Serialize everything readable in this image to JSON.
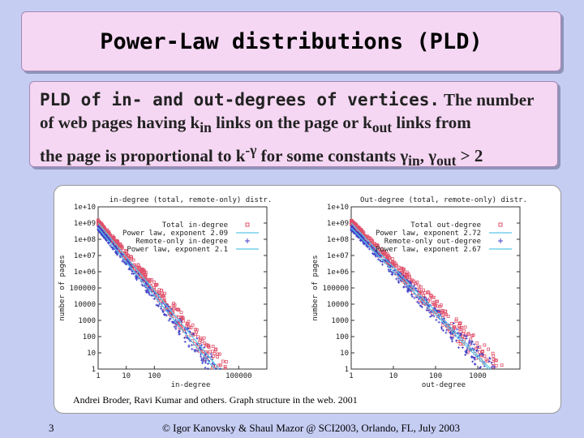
{
  "slide": {
    "title": "Power-Law distributions (PLD)",
    "desc": {
      "lead": "PLD of in- and out-degrees of vertices.",
      "t1": " The number",
      "t2": "of web pages having k",
      "sub_in": "in",
      "t3": " links on the page or k",
      "sub_out": "out",
      "t4": " links from",
      "t5": "the page is proportional to k",
      "sup": "-γ",
      "t6": " for some constants γ",
      "sub_in2": "in",
      "t7": ", γ",
      "sub_out2": "out",
      "t8": " > 2"
    },
    "caption": "Andrei Broder, Ravi Kumar and others. Graph structure in the web. 2001",
    "page_number": "3",
    "footer": "© Igor Kanovsky & Shaul Mazor @ SCI2003, Orlando, FL, July 2003"
  },
  "chart_data": [
    {
      "type": "scatter",
      "title": "in-degree (total, remote-only) distr.",
      "xlabel": "in-degree",
      "ylabel": "number of pages",
      "xscale": "log",
      "yscale": "log",
      "xlim": [
        1,
        1000000
      ],
      "ylim": [
        1,
        10000000000
      ],
      "xticks": [
        "1",
        "10",
        "100",
        "100000"
      ],
      "yticks": [
        "1",
        "10",
        "100",
        "1000",
        "10000",
        "100000",
        "1e+06",
        "1e+07",
        "1e+08",
        "1e+09",
        "1e+10"
      ],
      "legend": [
        {
          "label": "Total in-degree",
          "marker": "square",
          "color": "#e0506a"
        },
        {
          "label": "Power law, exponent 2.09",
          "marker": "line",
          "color": "#5bc8e8"
        },
        {
          "label": "Remote-only in-degree",
          "marker": "plus",
          "color": "#4040c8"
        },
        {
          "label": "Power law, exponent 2.1",
          "marker": "line",
          "color": "#5bc8e8"
        }
      ],
      "series": [
        {
          "name": "Power law, exponent 2.09",
          "exponent": 2.09,
          "y_at_1": 1000000000
        },
        {
          "name": "Power law, exponent 2.1",
          "exponent": 2.1,
          "y_at_1": 500000000
        }
      ]
    },
    {
      "type": "scatter",
      "title": "Out-degree (total, remote-only) distr.",
      "xlabel": "out-degree",
      "ylabel": "number of pages",
      "xscale": "log",
      "yscale": "log",
      "xlim": [
        1,
        10000
      ],
      "ylim": [
        1,
        10000000000
      ],
      "xticks": [
        "1",
        "10",
        "100",
        "1000"
      ],
      "yticks": [
        "1",
        "10",
        "100",
        "1000",
        "10000",
        "100000",
        "1e+06",
        "1e+07",
        "1e+08",
        "1e+09",
        "1e+10"
      ],
      "legend": [
        {
          "label": "Total out-degree",
          "marker": "square",
          "color": "#e0506a"
        },
        {
          "label": "Power law, exponent 2.72",
          "marker": "line",
          "color": "#5bc8e8"
        },
        {
          "label": "Remote-only out-degree",
          "marker": "plus",
          "color": "#4040c8"
        },
        {
          "label": "Power law, exponent 2.67",
          "marker": "line",
          "color": "#5bc8e8"
        }
      ],
      "series": [
        {
          "name": "Power law, exponent 2.72",
          "exponent": 2.72,
          "y_at_1": 1000000000
        },
        {
          "name": "Power law, exponent 2.67",
          "exponent": 2.67,
          "y_at_1": 500000000
        }
      ]
    }
  ]
}
